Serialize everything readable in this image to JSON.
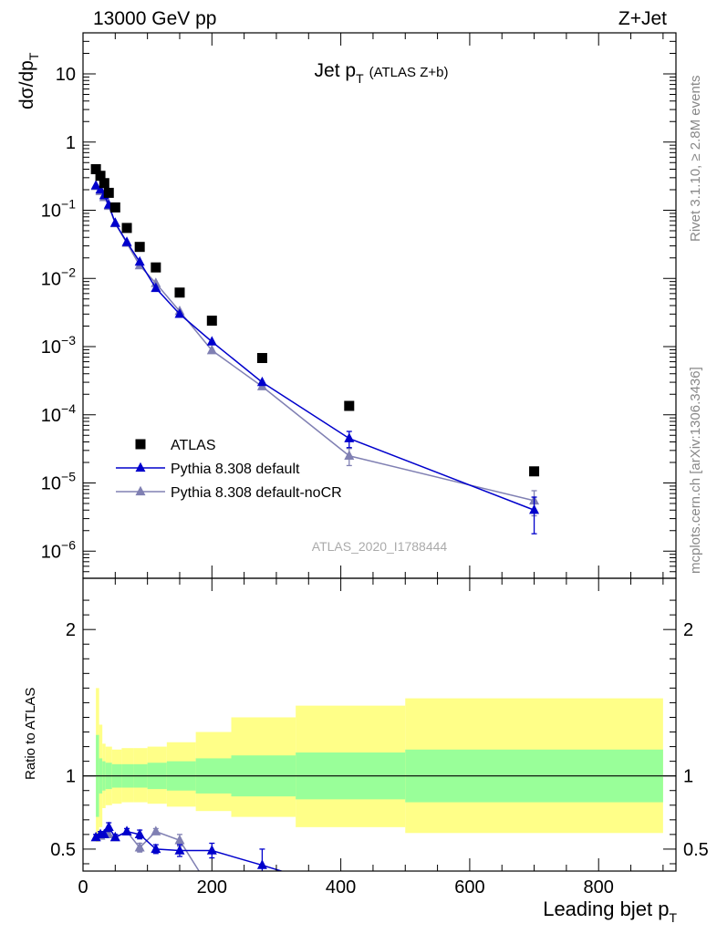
{
  "header": {
    "energy": "13000 GeV pp",
    "process": "Z+Jet"
  },
  "sidebar": {
    "rivet": "Rivet 3.1.10, ≥ 2.8M events",
    "mcplots": "mcplots.cern.ch [arXiv:1306.3436]"
  },
  "analysis_id": "ATLAS_2020_I1788444",
  "colors": {
    "atlas": "#000000",
    "default": "#0000cc",
    "nocr": "#8080b3",
    "band_inner": "#99ff99",
    "band_outer": "#ffff88"
  },
  "chart_data": [
    {
      "type": "scatter",
      "panel": "main",
      "title": "Jet p_T (ATLAS Z+b)",
      "title_main": "Jet p",
      "title_sub": "T",
      "title_note": "(ATLAS Z+b)",
      "ylabel": "dσ/dp_T",
      "ylabel_main": "dσ/dp",
      "ylabel_sub": "T",
      "yscale": "log",
      "ylim": [
        4e-07,
        40
      ],
      "xlim": [
        0,
        920
      ],
      "yticks": [
        {
          "v": 10,
          "base": "10",
          "exp": ""
        },
        {
          "v": 1,
          "base": "1",
          "exp": ""
        },
        {
          "v": 0.1,
          "base": "10",
          "exp": "−1"
        },
        {
          "v": 0.01,
          "base": "10",
          "exp": "−2"
        },
        {
          "v": 0.001,
          "base": "10",
          "exp": "−3"
        },
        {
          "v": 0.0001,
          "base": "10",
          "exp": "−4"
        },
        {
          "v": 1e-05,
          "base": "10",
          "exp": "−5"
        },
        {
          "v": 1e-06,
          "base": "10",
          "exp": "−6"
        }
      ],
      "legend_position": "lower-left",
      "series": [
        {
          "name": "ATLAS",
          "style": "markers",
          "x": [
            20,
            27,
            33,
            40,
            50,
            68,
            88,
            113,
            150,
            200,
            278,
            413,
            700
          ],
          "y": [
            0.4,
            0.32,
            0.25,
            0.18,
            0.11,
            0.055,
            0.029,
            0.0145,
            0.0062,
            0.0024,
            0.00068,
            0.000135,
            1.48e-05
          ]
        },
        {
          "name": "Pythia 8.308 default",
          "style": "line-triangles",
          "x": [
            20,
            27,
            33,
            40,
            50,
            68,
            88,
            113,
            150,
            200,
            278,
            413,
            700
          ],
          "y": [
            0.23,
            0.2,
            0.165,
            0.12,
            0.065,
            0.034,
            0.0175,
            0.0072,
            0.003,
            0.00118,
            0.0003,
            4.5e-05,
            4e-06
          ],
          "err": [
            0,
            0,
            0,
            0,
            0,
            0,
            0,
            0,
            0,
            0,
            0,
            1.2e-05,
            2.2e-06
          ]
        },
        {
          "name": "Pythia 8.308 default-noCR",
          "style": "line-triangles",
          "x": [
            20,
            27,
            33,
            40,
            50,
            68,
            88,
            113,
            150,
            200,
            278,
            413,
            700
          ],
          "y": [
            0.225,
            0.19,
            0.155,
            0.115,
            0.064,
            0.033,
            0.0155,
            0.0085,
            0.0033,
            0.00088,
            0.00026,
            2.5e-05,
            5.5e-06
          ],
          "err": [
            0,
            0,
            0,
            0,
            0,
            0,
            0,
            0,
            0,
            0,
            0,
            7e-06,
            2.2e-06
          ]
        }
      ]
    },
    {
      "type": "line",
      "panel": "ratio",
      "ylabel": "Ratio to ATLAS",
      "xlabel": "Leading bjet p_T",
      "xlabel_main": "Leading bjet p",
      "xlabel_sub": "T",
      "xlim": [
        0,
        920
      ],
      "ylim": [
        0.35,
        2.35
      ],
      "xticks": [
        0,
        200,
        400,
        600,
        800
      ],
      "yticks": [
        0.5,
        1,
        2
      ],
      "bands": {
        "edges": [
          20,
          25,
          30,
          35,
          45,
          60,
          78,
          100,
          130,
          175,
          230,
          330,
          500,
          900
        ],
        "inner_lo": [
          0.72,
          0.88,
          0.9,
          0.91,
          0.92,
          0.92,
          0.92,
          0.91,
          0.9,
          0.88,
          0.86,
          0.84,
          0.82
        ],
        "inner_hi": [
          1.28,
          1.12,
          1.1,
          1.09,
          1.08,
          1.08,
          1.08,
          1.09,
          1.1,
          1.12,
          1.14,
          1.16,
          1.18
        ],
        "outer_lo": [
          0.55,
          0.65,
          0.78,
          0.8,
          0.81,
          0.82,
          0.82,
          0.81,
          0.79,
          0.76,
          0.72,
          0.65,
          0.61
        ],
        "outer_hi": [
          1.6,
          1.35,
          1.22,
          1.2,
          1.18,
          1.19,
          1.19,
          1.2,
          1.23,
          1.3,
          1.4,
          1.48,
          1.53
        ]
      },
      "series": [
        {
          "name": "Pythia 8.308 default",
          "x": [
            20,
            27,
            33,
            40,
            50,
            68,
            88,
            113,
            150,
            200,
            278
          ],
          "y": [
            0.58,
            0.6,
            0.6,
            0.65,
            0.58,
            0.62,
            0.6,
            0.5,
            0.49,
            0.49,
            0.39
          ],
          "err": [
            0.02,
            0.02,
            0.02,
            0.03,
            0.02,
            0.02,
            0.03,
            0.03,
            0.04,
            0.05,
            0.11
          ],
          "x_end": 330,
          "y_end": 0.32
        },
        {
          "name": "Pythia 8.308 default-noCR",
          "x": [
            20,
            27,
            33,
            40,
            50,
            68,
            88,
            113,
            150
          ],
          "y": [
            0.58,
            0.59,
            0.6,
            0.6,
            0.58,
            0.62,
            0.51,
            0.62,
            0.56
          ],
          "err": [
            0.02,
            0.02,
            0.02,
            0.02,
            0.02,
            0.02,
            0.03,
            0.02,
            0.04
          ],
          "x_end": 180,
          "y_end": 0.35
        }
      ]
    }
  ]
}
